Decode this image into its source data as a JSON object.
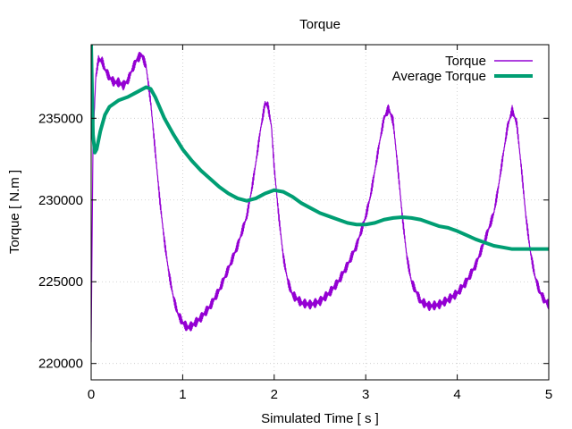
{
  "chart_data": {
    "type": "line",
    "title": "Torque",
    "xlabel": "Simulated Time [ s ]",
    "ylabel": "Torque [ N.m ]",
    "xlim": [
      0,
      5
    ],
    "ylim": [
      219000,
      239500
    ],
    "xticks": [
      0,
      1,
      2,
      3,
      4,
      5
    ],
    "yticks": [
      220000,
      225000,
      230000,
      235000
    ],
    "grid": true,
    "legend_position": "top-right",
    "series": [
      {
        "name": "Torque",
        "color": "#9400d3",
        "noisy": true,
        "points": [
          [
            0.0,
            221300
          ],
          [
            0.02,
            233500
          ],
          [
            0.05,
            237500
          ],
          [
            0.08,
            238600
          ],
          [
            0.12,
            238500
          ],
          [
            0.15,
            238000
          ],
          [
            0.2,
            237500
          ],
          [
            0.25,
            237200
          ],
          [
            0.3,
            237200
          ],
          [
            0.35,
            237000
          ],
          [
            0.4,
            237300
          ],
          [
            0.45,
            238000
          ],
          [
            0.5,
            238600
          ],
          [
            0.55,
            238900
          ],
          [
            0.6,
            238200
          ],
          [
            0.65,
            236000
          ],
          [
            0.7,
            233000
          ],
          [
            0.75,
            230000
          ],
          [
            0.8,
            227500
          ],
          [
            0.85,
            225500
          ],
          [
            0.9,
            224000
          ],
          [
            0.95,
            223000
          ],
          [
            1.0,
            222500
          ],
          [
            1.05,
            222200
          ],
          [
            1.1,
            222300
          ],
          [
            1.2,
            222800
          ],
          [
            1.3,
            223500
          ],
          [
            1.4,
            224500
          ],
          [
            1.5,
            225800
          ],
          [
            1.6,
            227200
          ],
          [
            1.7,
            229000
          ],
          [
            1.75,
            230500
          ],
          [
            1.8,
            232300
          ],
          [
            1.85,
            234300
          ],
          [
            1.9,
            235900
          ],
          [
            1.93,
            235800
          ],
          [
            1.97,
            234500
          ],
          [
            2.0,
            232000
          ],
          [
            2.05,
            229000
          ],
          [
            2.1,
            226500
          ],
          [
            2.15,
            225000
          ],
          [
            2.2,
            224200
          ],
          [
            2.3,
            223700
          ],
          [
            2.4,
            223600
          ],
          [
            2.5,
            223800
          ],
          [
            2.6,
            224300
          ],
          [
            2.7,
            225000
          ],
          [
            2.8,
            226000
          ],
          [
            2.9,
            227200
          ],
          [
            3.0,
            229000
          ],
          [
            3.05,
            230200
          ],
          [
            3.1,
            231800
          ],
          [
            3.15,
            233500
          ],
          [
            3.2,
            235000
          ],
          [
            3.25,
            235600
          ],
          [
            3.3,
            234800
          ],
          [
            3.35,
            232000
          ],
          [
            3.4,
            229000
          ],
          [
            3.45,
            226500
          ],
          [
            3.5,
            225000
          ],
          [
            3.6,
            223800
          ],
          [
            3.7,
            223500
          ],
          [
            3.8,
            223600
          ],
          [
            3.9,
            223900
          ],
          [
            4.0,
            224300
          ],
          [
            4.1,
            225000
          ],
          [
            4.2,
            226000
          ],
          [
            4.3,
            227500
          ],
          [
            4.4,
            229200
          ],
          [
            4.45,
            230800
          ],
          [
            4.5,
            232700
          ],
          [
            4.55,
            234500
          ],
          [
            4.6,
            235500
          ],
          [
            4.65,
            234700
          ],
          [
            4.7,
            232000
          ],
          [
            4.75,
            229000
          ],
          [
            4.8,
            226800
          ],
          [
            4.85,
            225300
          ],
          [
            4.9,
            224400
          ],
          [
            4.95,
            223900
          ],
          [
            5.0,
            223600
          ]
        ]
      },
      {
        "name": "Average Torque",
        "color": "#009e73",
        "noisy": false,
        "points": [
          [
            0.0,
            239500
          ],
          [
            0.02,
            234000
          ],
          [
            0.04,
            232900
          ],
          [
            0.06,
            233100
          ],
          [
            0.1,
            234200
          ],
          [
            0.15,
            235200
          ],
          [
            0.2,
            235700
          ],
          [
            0.3,
            236100
          ],
          [
            0.4,
            236300
          ],
          [
            0.5,
            236600
          ],
          [
            0.6,
            236900
          ],
          [
            0.65,
            236800
          ],
          [
            0.7,
            236300
          ],
          [
            0.8,
            235000
          ],
          [
            0.9,
            234000
          ],
          [
            1.0,
            233100
          ],
          [
            1.1,
            232400
          ],
          [
            1.2,
            231800
          ],
          [
            1.3,
            231300
          ],
          [
            1.4,
            230800
          ],
          [
            1.5,
            230400
          ],
          [
            1.6,
            230100
          ],
          [
            1.7,
            229950
          ],
          [
            1.8,
            230100
          ],
          [
            1.9,
            230400
          ],
          [
            2.0,
            230600
          ],
          [
            2.1,
            230500
          ],
          [
            2.2,
            230200
          ],
          [
            2.3,
            229800
          ],
          [
            2.4,
            229500
          ],
          [
            2.5,
            229200
          ],
          [
            2.6,
            229000
          ],
          [
            2.7,
            228800
          ],
          [
            2.8,
            228600
          ],
          [
            2.9,
            228500
          ],
          [
            3.0,
            228500
          ],
          [
            3.1,
            228600
          ],
          [
            3.2,
            228800
          ],
          [
            3.3,
            228900
          ],
          [
            3.4,
            228950
          ],
          [
            3.5,
            228900
          ],
          [
            3.6,
            228800
          ],
          [
            3.7,
            228600
          ],
          [
            3.8,
            228400
          ],
          [
            3.9,
            228300
          ],
          [
            4.0,
            228100
          ],
          [
            4.1,
            227850
          ],
          [
            4.2,
            227600
          ],
          [
            4.3,
            227400
          ],
          [
            4.4,
            227200
          ],
          [
            4.5,
            227100
          ],
          [
            4.6,
            227000
          ],
          [
            4.7,
            227000
          ],
          [
            4.8,
            227000
          ],
          [
            4.9,
            227000
          ],
          [
            5.0,
            227000
          ]
        ]
      }
    ]
  }
}
